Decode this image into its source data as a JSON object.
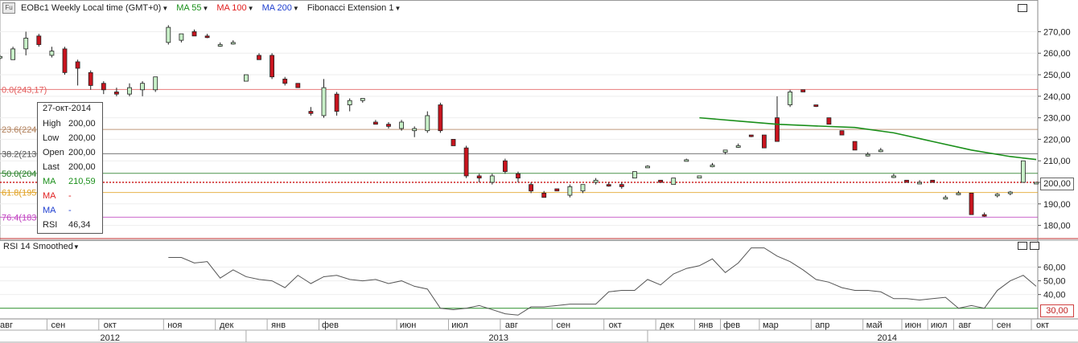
{
  "header": {
    "symbol_badge": "Fu",
    "symbol_title": "EOBc1 Weekly Local time (GMT+0)",
    "indicators": [
      {
        "label": "MA 55",
        "color": "#1a8f1a"
      },
      {
        "label": "MA 100",
        "color": "#e02020"
      },
      {
        "label": "MA 200",
        "color": "#2040d0"
      },
      {
        "label": "Fibonacci Extension 1",
        "color": "#222222"
      }
    ]
  },
  "tooltip": {
    "date": "27-окт-2014",
    "rows": [
      {
        "label": "High",
        "value": "200,00",
        "color": "#222222"
      },
      {
        "label": "Low",
        "value": "200,00",
        "color": "#222222"
      },
      {
        "label": "Open",
        "value": "200,00",
        "color": "#222222"
      },
      {
        "label": "Last",
        "value": "200,00",
        "color": "#222222"
      },
      {
        "label": "MA",
        "value": "210,59",
        "color": "#1a8f1a"
      },
      {
        "label": "MA",
        "value": "-",
        "color": "#e02020"
      },
      {
        "label": "MA",
        "value": "-",
        "color": "#2040d0"
      },
      {
        "label": "RSI",
        "value": "46,34",
        "color": "#222222"
      }
    ]
  },
  "rsi_panel": {
    "title": "RSI 14 Smoothed"
  },
  "chart_data": [
    {
      "type": "candlestick",
      "title": "EOBc1 Weekly Local time (GMT+0)",
      "ylim": [
        175,
        278
      ],
      "y_ticks": [
        "180,00",
        "190,00",
        "200,00",
        "210,00",
        "220,00",
        "230,00",
        "240,00",
        "250,00",
        "260,00",
        "270,00"
      ],
      "last_price": "200,00",
      "fibonacci_levels": [
        {
          "label": "0.0(243,17)",
          "value": 243.17,
          "color": "#e35b5b"
        },
        {
          "label": "23.6(224",
          "value": 224.6,
          "color": "#b07f5a"
        },
        {
          "label": "38.2(213",
          "value": 213.3,
          "color": "#555555"
        },
        {
          "label": "50.0(204",
          "value": 204.2,
          "color": "#1f7a1f"
        },
        {
          "label": "61.8(195",
          "value": 195.3,
          "color": "#e0a020"
        },
        {
          "label": "76.4(183",
          "value": 183.8,
          "color": "#c040c0"
        }
      ],
      "candles": [
        {
          "o": 258,
          "h": 259,
          "l": 257,
          "c": 258.5
        },
        {
          "o": 257,
          "h": 263,
          "l": 257,
          "c": 262
        },
        {
          "o": 262,
          "h": 270,
          "l": 259,
          "c": 267
        },
        {
          "o": 268,
          "h": 269,
          "l": 263,
          "c": 264
        },
        {
          "o": 259,
          "h": 263,
          "l": 258,
          "c": 261
        },
        {
          "o": 262,
          "h": 263,
          "l": 250,
          "c": 251
        },
        {
          "o": 256,
          "h": 257,
          "l": 245,
          "c": 253
        },
        {
          "o": 251,
          "h": 252,
          "l": 243,
          "c": 245
        },
        {
          "o": 246,
          "h": 247,
          "l": 241,
          "c": 243
        },
        {
          "o": 242,
          "h": 244,
          "l": 240,
          "c": 241
        },
        {
          "o": 241,
          "h": 246,
          "l": 240,
          "c": 244
        },
        {
          "o": 243,
          "h": 247,
          "l": 240,
          "c": 246
        },
        {
          "o": 243,
          "h": 249,
          "l": 242,
          "c": 249
        },
        {
          "o": 265,
          "h": 273,
          "l": 264,
          "c": 272
        },
        {
          "o": 266,
          "h": 269,
          "l": 265,
          "c": 269
        },
        {
          "o": 270,
          "h": 271,
          "l": 268,
          "c": 268
        },
        {
          "o": 268,
          "h": 269,
          "l": 267,
          "c": 267.5
        },
        {
          "o": 264,
          "h": 265,
          "l": 263,
          "c": 264
        },
        {
          "o": 265,
          "h": 266,
          "l": 264,
          "c": 265
        },
        {
          "o": 247,
          "h": 250,
          "l": 247,
          "c": 250
        },
        {
          "o": 259,
          "h": 260,
          "l": 257,
          "c": 257
        },
        {
          "o": 259,
          "h": 260,
          "l": 248,
          "c": 249
        },
        {
          "o": 248,
          "h": 249,
          "l": 245,
          "c": 246
        },
        {
          "o": 246,
          "h": 246,
          "l": 244,
          "c": 244
        },
        {
          "o": 233,
          "h": 235,
          "l": 231,
          "c": 232
        },
        {
          "o": 231,
          "h": 248,
          "l": 230,
          "c": 244
        },
        {
          "o": 241,
          "h": 242,
          "l": 231,
          "c": 233
        },
        {
          "o": 236,
          "h": 239,
          "l": 233,
          "c": 238
        },
        {
          "o": 238,
          "h": 239,
          "l": 237,
          "c": 239
        },
        {
          "o": 228,
          "h": 229,
          "l": 227,
          "c": 227
        },
        {
          "o": 227,
          "h": 228,
          "l": 225,
          "c": 226
        },
        {
          "o": 225,
          "h": 229,
          "l": 224,
          "c": 228
        },
        {
          "o": 224,
          "h": 226,
          "l": 221,
          "c": 225
        },
        {
          "o": 224,
          "h": 233,
          "l": 223,
          "c": 231
        },
        {
          "o": 236,
          "h": 237,
          "l": 223,
          "c": 224
        },
        {
          "o": 220,
          "h": 220,
          "l": 217,
          "c": 217
        },
        {
          "o": 216,
          "h": 217,
          "l": 202,
          "c": 203
        },
        {
          "o": 203,
          "h": 204,
          "l": 200,
          "c": 202
        },
        {
          "o": 200,
          "h": 204,
          "l": 199,
          "c": 203
        },
        {
          "o": 210,
          "h": 211,
          "l": 204,
          "c": 205
        },
        {
          "o": 204,
          "h": 205,
          "l": 200,
          "c": 202
        },
        {
          "o": 199,
          "h": 200,
          "l": 195,
          "c": 196
        },
        {
          "o": 195,
          "h": 196,
          "l": 193,
          "c": 193
        },
        {
          "o": 197,
          "h": 197,
          "l": 196,
          "c": 196
        },
        {
          "o": 194,
          "h": 199,
          "l": 193,
          "c": 198
        },
        {
          "o": 196,
          "h": 199,
          "l": 195,
          "c": 199
        },
        {
          "o": 200,
          "h": 202,
          "l": 199,
          "c": 201
        },
        {
          "o": 199,
          "h": 200,
          "l": 198,
          "c": 198.5
        },
        {
          "o": 199,
          "h": 200,
          "l": 197,
          "c": 198
        },
        {
          "o": 202,
          "h": 205,
          "l": 202,
          "c": 205
        },
        {
          "o": 207,
          "h": 208,
          "l": 207,
          "c": 207.5
        },
        {
          "o": 201,
          "h": 201,
          "l": 200,
          "c": 200
        },
        {
          "o": 199,
          "h": 202,
          "l": 199,
          "c": 202
        },
        {
          "o": 210,
          "h": 211,
          "l": 210,
          "c": 210.5
        },
        {
          "o": 202,
          "h": 203,
          "l": 202,
          "c": 203
        },
        {
          "o": 208,
          "h": 209,
          "l": 207,
          "c": 208
        },
        {
          "o": 214,
          "h": 215,
          "l": 213,
          "c": 215
        },
        {
          "o": 217,
          "h": 218,
          "l": 216,
          "c": 217
        },
        {
          "o": 222,
          "h": 222,
          "l": 221,
          "c": 221.5
        },
        {
          "o": 222,
          "h": 222,
          "l": 216,
          "c": 216
        },
        {
          "o": 230,
          "h": 240,
          "l": 219,
          "c": 219
        },
        {
          "o": 236,
          "h": 243,
          "l": 235,
          "c": 242
        },
        {
          "o": 243,
          "h": 243,
          "l": 242,
          "c": 242
        },
        {
          "o": 236,
          "h": 236,
          "l": 235,
          "c": 235.5
        },
        {
          "o": 230,
          "h": 230,
          "l": 227,
          "c": 227
        },
        {
          "o": 224,
          "h": 224,
          "l": 222,
          "c": 222
        },
        {
          "o": 219,
          "h": 219,
          "l": 215,
          "c": 215
        },
        {
          "o": 213,
          "h": 214,
          "l": 212,
          "c": 213
        },
        {
          "o": 215,
          "h": 216,
          "l": 214,
          "c": 215
        },
        {
          "o": 203,
          "h": 204,
          "l": 202,
          "c": 203
        },
        {
          "o": 201,
          "h": 201,
          "l": 200,
          "c": 200
        },
        {
          "o": 200,
          "h": 201,
          "l": 200,
          "c": 200
        },
        {
          "o": 201,
          "h": 201,
          "l": 200,
          "c": 200
        },
        {
          "o": 193,
          "h": 194,
          "l": 192,
          "c": 193
        },
        {
          "o": 195,
          "h": 196,
          "l": 194,
          "c": 195
        },
        {
          "o": 195,
          "h": 195,
          "l": 185,
          "c": 185
        },
        {
          "o": 185,
          "h": 186,
          "l": 184,
          "c": 184.5
        },
        {
          "o": 194,
          "h": 195,
          "l": 193,
          "c": 194.5
        },
        {
          "o": 195,
          "h": 196,
          "l": 194,
          "c": 195.5
        },
        {
          "o": 200,
          "h": 210,
          "l": 200,
          "c": 210
        },
        {
          "o": 200,
          "h": 200,
          "l": 200,
          "c": 200
        }
      ],
      "ma55": [
        {
          "i": 54,
          "v": 230.0
        },
        {
          "i": 57,
          "v": 228.5
        },
        {
          "i": 60,
          "v": 227.0
        },
        {
          "i": 63,
          "v": 226.2
        },
        {
          "i": 66,
          "v": 225.5
        },
        {
          "i": 69,
          "v": 223.0
        },
        {
          "i": 72,
          "v": 219.0
        },
        {
          "i": 75,
          "v": 215.0
        },
        {
          "i": 78,
          "v": 212.0
        },
        {
          "i": 80,
          "v": 210.6
        }
      ]
    },
    {
      "type": "line",
      "title": "RSI 14 Smoothed",
      "ylim": [
        24,
        72
      ],
      "y_ticks": [
        "40,00",
        "50,00",
        "60,00"
      ],
      "level": "30,00",
      "level_value": 30,
      "values": [
        null,
        null,
        null,
        null,
        null,
        null,
        null,
        null,
        null,
        null,
        null,
        null,
        null,
        67,
        67,
        63,
        64,
        52,
        58,
        53,
        51,
        50,
        45,
        54,
        48,
        53,
        54,
        51,
        50,
        51,
        48,
        50,
        46,
        44,
        30,
        29,
        30,
        32,
        29,
        26,
        25,
        31,
        31,
        32,
        33,
        33,
        33,
        42,
        43,
        43,
        51,
        47,
        55,
        59,
        61,
        66,
        56,
        63,
        74,
        74,
        68,
        64,
        58,
        51,
        49,
        45,
        43,
        43,
        42,
        37,
        37,
        36,
        37,
        38,
        30,
        32,
        30,
        43,
        50,
        54,
        46
      ]
    }
  ],
  "x_axis": {
    "months": [
      {
        "label": "авг",
        "i": 0
      },
      {
        "label": "сен",
        "i": 4
      },
      {
        "label": "окт",
        "i": 8
      },
      {
        "label": "ноя",
        "i": 13
      },
      {
        "label": "дек",
        "i": 17
      },
      {
        "label": "янв",
        "i": 21
      },
      {
        "label": "фев",
        "i": 25
      },
      {
        "label": "июн",
        "i": 31
      },
      {
        "label": "июл",
        "i": 35
      },
      {
        "label": "авг",
        "i": 39
      },
      {
        "label": "сен",
        "i": 43
      },
      {
        "label": "окт",
        "i": 47
      },
      {
        "label": "дек",
        "i": 51
      },
      {
        "label": "янв",
        "i": 54
      },
      {
        "label": "фев",
        "i": 56
      },
      {
        "label": "мар",
        "i": 59
      },
      {
        "label": "апр",
        "i": 63
      },
      {
        "label": "май",
        "i": 67
      },
      {
        "label": "июн",
        "i": 70
      },
      {
        "label": "июл",
        "i": 72
      },
      {
        "label": "авг",
        "i": 74
      },
      {
        "label": "сен",
        "i": 77
      },
      {
        "label": "окт",
        "i": 80
      }
    ],
    "years": [
      {
        "label": "2012",
        "i": 8
      },
      {
        "label": "2013",
        "i": 38
      },
      {
        "label": "2014",
        "i": 68
      }
    ]
  }
}
